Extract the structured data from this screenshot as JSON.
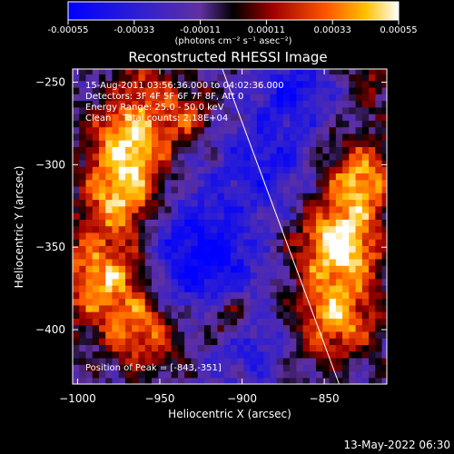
{
  "colorbar": {
    "ticks": [
      "-0.00055",
      "-0.00033",
      "-0.00011",
      "0.00011",
      "0.00033",
      "0.00055"
    ],
    "unit_label": "(photons cm⁻² s⁻¹ asec⁻²)"
  },
  "title": "Reconstructed RHESSI Image",
  "info": {
    "time_range": "15-Aug-2011 03:56:36.000 to 04:02:36.000",
    "detectors": "Detectors: 3F 4F 5F 6F 7F 8F, Att 0",
    "energy_range": "Energy Range: 25.0 - 50.0 keV",
    "clean_counts": "Clean    Total counts: 2.18E+04"
  },
  "peak_label": "Position of Peak = [-843,-351]",
  "footer_date": "13-May-2022 06:30",
  "chart_data": {
    "type": "heatmap",
    "title": "Reconstructed RHESSI Image",
    "xlabel": "Heliocentric X (arcsec)",
    "ylabel": "Heliocentric Y (arcsec)",
    "xlim": [
      -1003,
      -812
    ],
    "ylim": [
      -433,
      -242
    ],
    "xticks": [
      -1000,
      -950,
      -900,
      -850
    ],
    "yticks": [
      -250,
      -300,
      -350,
      -400
    ],
    "colorbar_range": [
      -0.00055,
      0.00055
    ],
    "colormap": "blue-purple-black-red-orange-yellow-white",
    "peak_position": [
      -843,
      -351
    ],
    "limb_line": {
      "x": [
        -912,
        -841
      ],
      "y": [
        -242,
        -433
      ]
    },
    "bright_regions": [
      {
        "x_range": [
          -1000,
          -955
        ],
        "y_range": [
          -420,
          -260
        ],
        "level": "high"
      },
      {
        "x_range": [
          -870,
          -812
        ],
        "y_range": [
          -425,
          -290
        ],
        "level": "high"
      }
    ]
  }
}
